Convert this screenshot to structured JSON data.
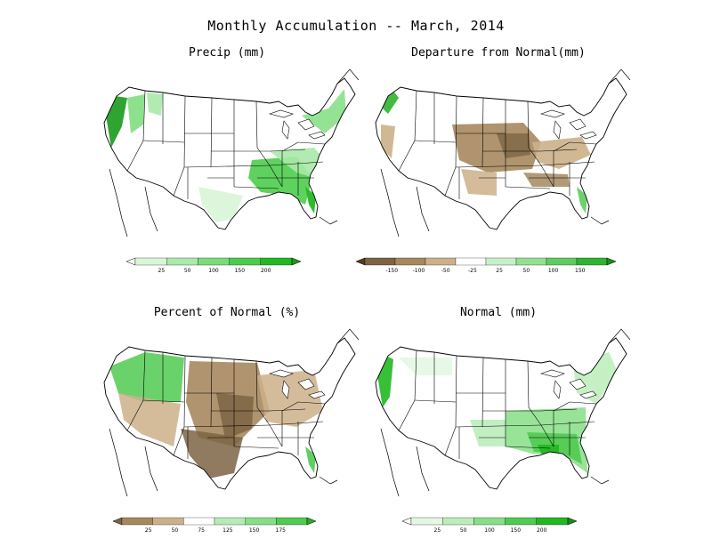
{
  "title": "Monthly Accumulation -- March, 2014",
  "panels": [
    {
      "id": "precip",
      "title": "Precip (mm)",
      "legend": {
        "labels": [
          "25",
          "50",
          "100",
          "150",
          "200"
        ],
        "colors": [
          "#ffffff",
          "#d8f5d8",
          "#a9e9a9",
          "#79dc79",
          "#4ccc4c",
          "#23b823",
          "#1a9a1a"
        ]
      }
    },
    {
      "id": "departure",
      "title": "Departure from Normal(mm)",
      "legend": {
        "labels": [
          "-150",
          "-100",
          "-50",
          "-25",
          "25",
          "50",
          "100",
          "150"
        ],
        "colors": [
          "#4f3f25",
          "#7d6444",
          "#a6885f",
          "#ccb08a",
          "#ffffff",
          "#c8f0c8",
          "#92e092",
          "#5ecc5e",
          "#2fb42f",
          "#1a8f1a"
        ]
      }
    },
    {
      "id": "percent",
      "title": "Percent of Normal (%)",
      "legend": {
        "labels": [
          "25",
          "50",
          "75",
          "125",
          "150",
          "175"
        ],
        "colors": [
          "#7d6444",
          "#a6885f",
          "#ccb08a",
          "#ffffff",
          "#b5ecb5",
          "#86de86",
          "#50ca50",
          "#22b022"
        ]
      }
    },
    {
      "id": "normal",
      "title": "Normal (mm)",
      "legend": {
        "labels": [
          "25",
          "50",
          "100",
          "150",
          "200"
        ],
        "colors": [
          "#ffffff",
          "#e3f7e3",
          "#baedba",
          "#86de86",
          "#50ca50",
          "#22b822",
          "#128f12"
        ]
      }
    }
  ]
}
